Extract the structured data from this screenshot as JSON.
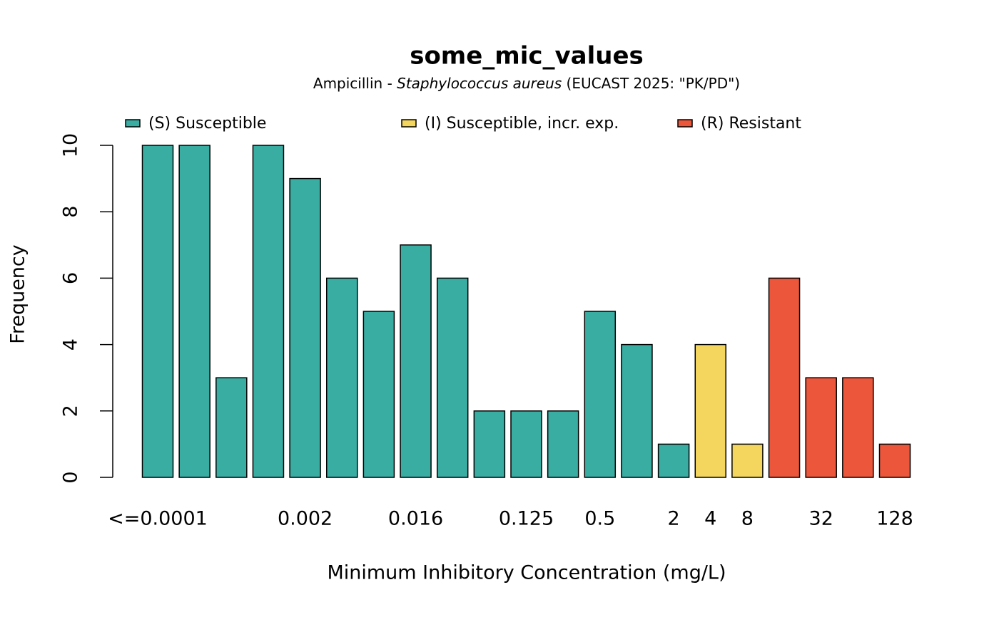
{
  "chart_data": {
    "type": "bar",
    "title": "some_mic_values",
    "subtitle_parts": [
      "Ampicillin - ",
      "Staphylococcus aureus",
      " (EUCAST 2025: \"PK/PD\")"
    ],
    "x_label": "Minimum Inhibitory Concentration (mg/L)",
    "y_label": "Frequency",
    "categories": [
      "<=0.0001",
      null,
      null,
      null,
      "0.002",
      null,
      null,
      "0.016",
      null,
      null,
      "0.125",
      null,
      "0.5",
      null,
      "2",
      "4",
      "8",
      null,
      "32",
      null,
      "128"
    ],
    "series": [
      {
        "name": "(S) Susceptible",
        "color": "#3aad a3",
        "values": [
          10,
          10,
          3,
          10,
          9,
          6,
          5,
          7,
          6,
          2,
          2,
          2,
          5,
          4,
          1,
          null,
          null,
          null,
          null,
          null,
          null
        ]
      },
      {
        "name": "(I) Susceptible, incr. exp.",
        "color": "#f4d55e",
        "values": [
          null,
          null,
          null,
          null,
          null,
          null,
          null,
          null,
          null,
          null,
          null,
          null,
          null,
          null,
          null,
          4,
          1,
          null,
          null,
          null,
          null
        ]
      },
      {
        "name": "(R) Resistant",
        "color": "#ec563b",
        "values": [
          null,
          null,
          null,
          null,
          null,
          null,
          null,
          null,
          null,
          null,
          null,
          null,
          null,
          null,
          null,
          null,
          null,
          6,
          3,
          3,
          1
        ]
      }
    ],
    "ylim": [
      0,
      10
    ],
    "yticks": [
      0,
      2,
      4,
      6,
      8,
      10
    ],
    "legend": "top"
  }
}
